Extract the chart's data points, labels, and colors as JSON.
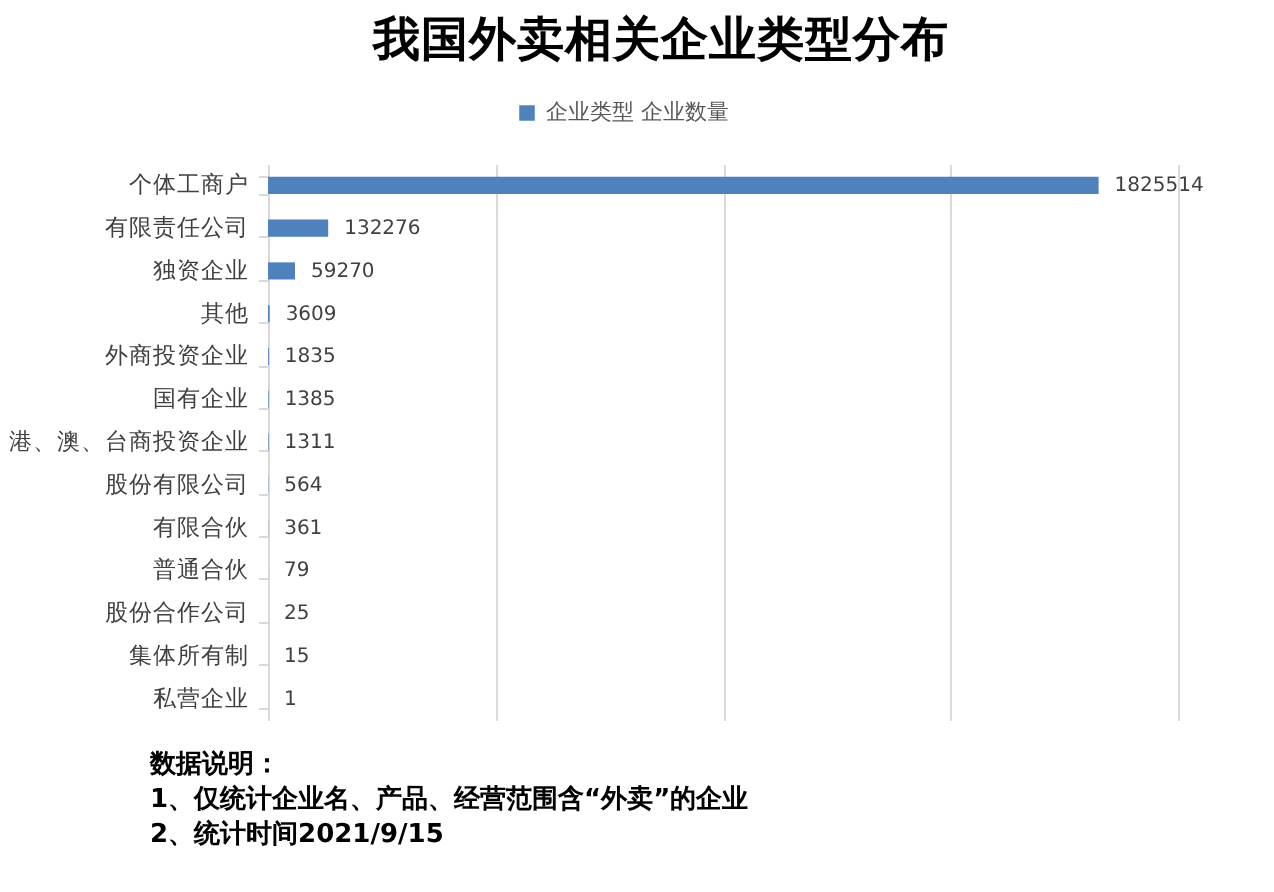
{
  "chart_data": {
    "type": "bar",
    "orientation": "horizontal",
    "title": "我国外卖相关企业类型分布",
    "categories": [
      "个体工商户",
      "有限责任公司",
      "独资企业",
      "其他",
      "外商投资企业",
      "国有企业",
      "港、澳、台商投资企业",
      "股份有限公司",
      "有限合伙",
      "普通合伙",
      "股份合作公司",
      "集体所有制",
      "私营企业"
    ],
    "series": [
      {
        "name": "企业类型 企业数量",
        "color": "#4f81bd",
        "values": [
          1825514,
          132276,
          59270,
          3609,
          1835,
          1385,
          1311,
          564,
          361,
          79,
          25,
          15,
          1
        ]
      }
    ],
    "xlim": [
      0,
      2000000
    ],
    "xticks": [
      {
        "value": 0,
        "label": null
      },
      {
        "value": 500000,
        "label": null
      },
      {
        "value": 1000000,
        "label": null
      },
      {
        "value": 1500000,
        "label": null
      },
      {
        "value": 2000000,
        "label": null
      }
    ],
    "tick_labels": "y",
    "grid": "x",
    "legend": "top",
    "data_labels": true,
    "annotations": [
      "数据说明：",
      "1、仅统计企业名、产品、经营范围含“外卖”的企业",
      "2、统计时间2021/9/15"
    ]
  }
}
